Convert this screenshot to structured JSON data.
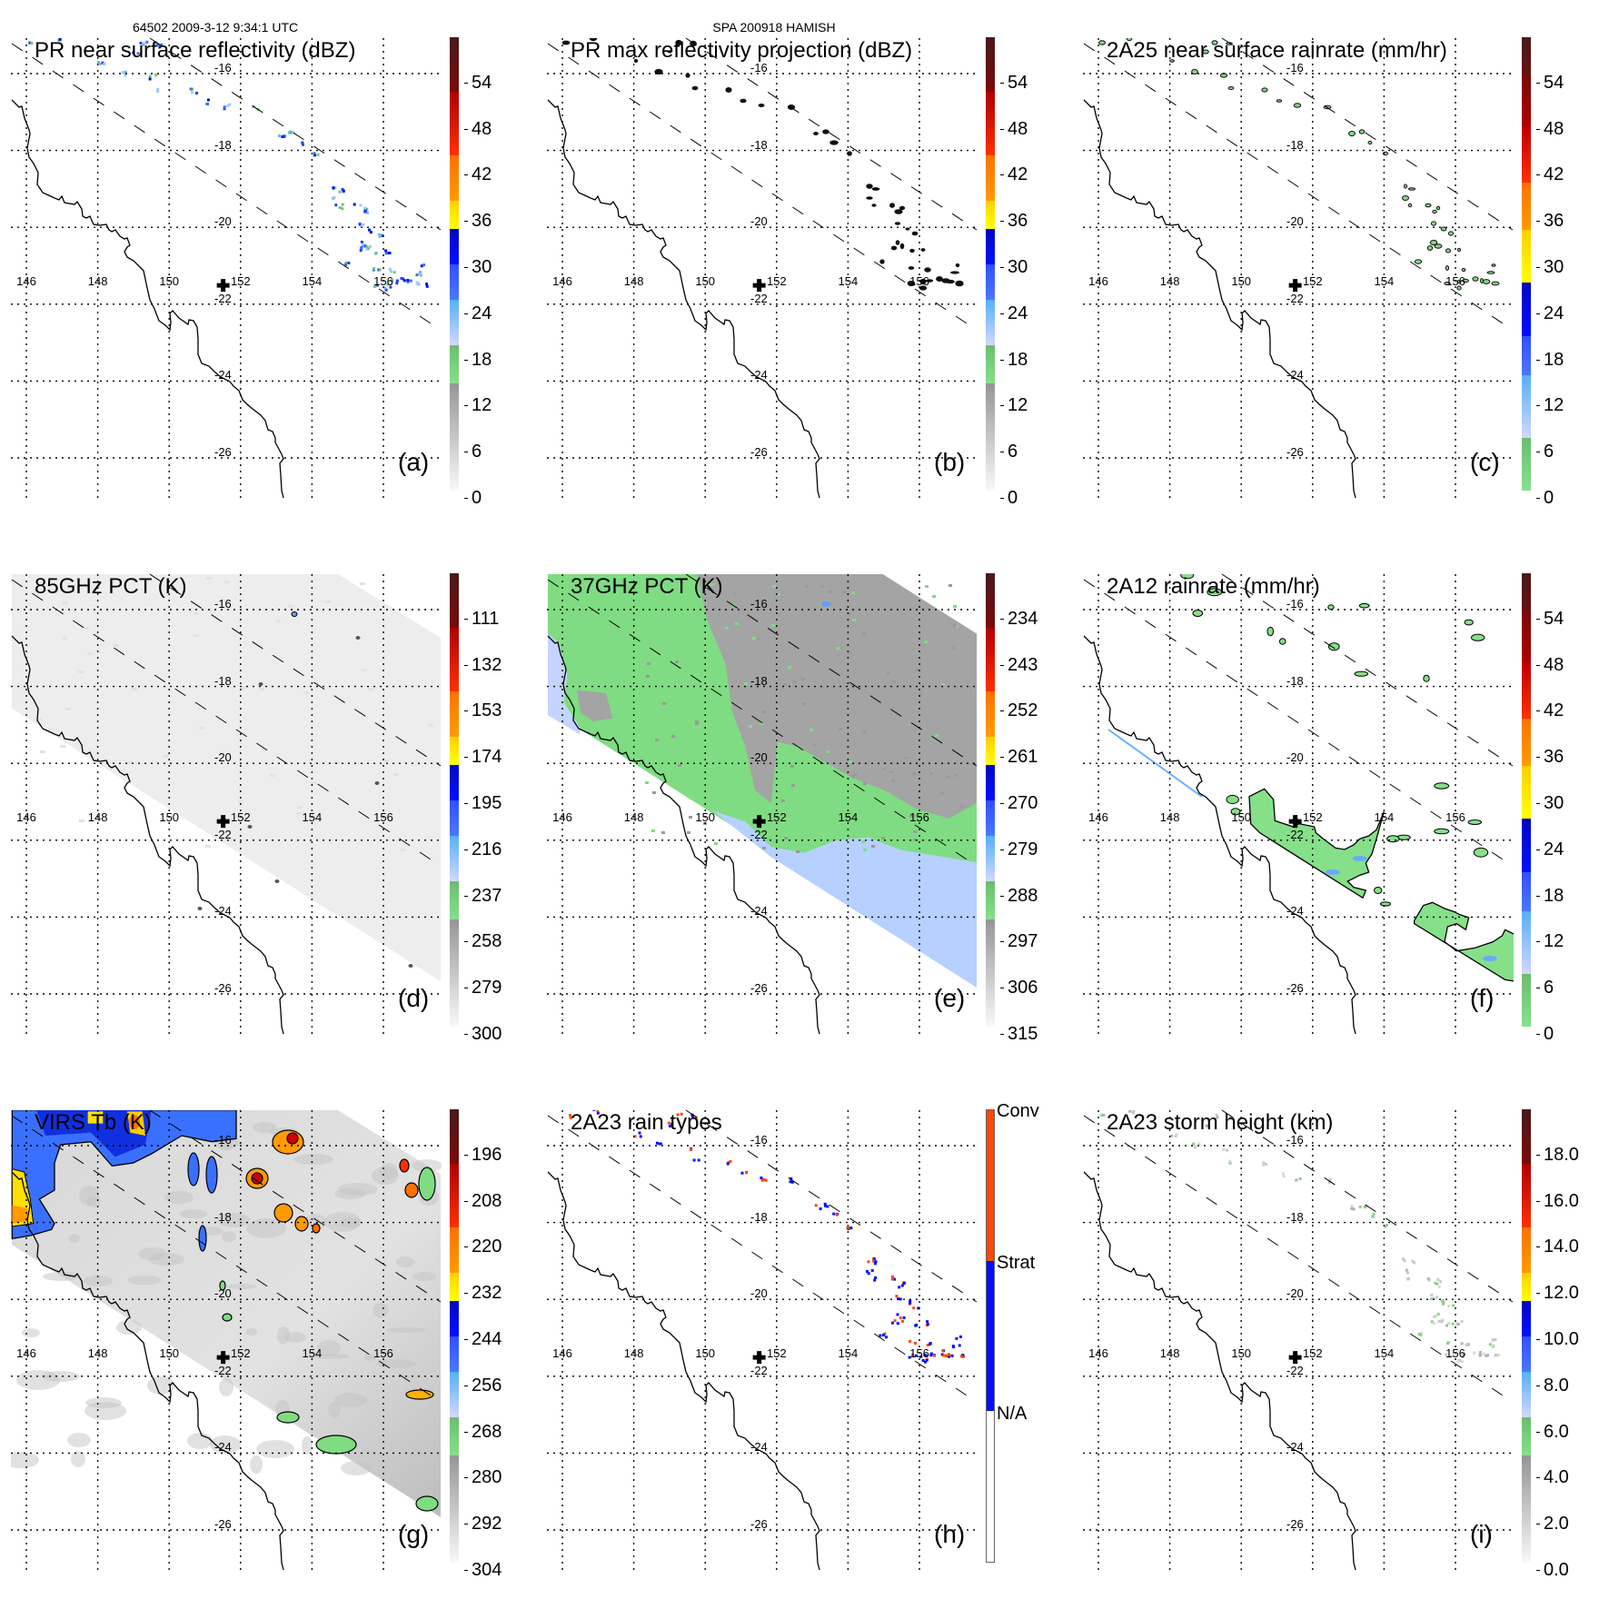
{
  "header": {
    "orbit_time": "64502 2009-3-12 9:34:1 UTC",
    "storm": "SPA 200918 HAMISH"
  },
  "axes": {
    "lon_labels": [
      "146",
      "148",
      "150",
      "152",
      "154",
      "156"
    ],
    "lon_values": [
      146,
      148,
      150,
      152,
      154,
      156
    ],
    "lat_labels": [
      "-16",
      "-18",
      "-20",
      "-22",
      "-24",
      "-26"
    ],
    "lat_values": [
      -16,
      -18,
      -20,
      -22,
      -24,
      -26
    ]
  },
  "storm_center_marker": {
    "icon": "cross-icon",
    "lon": 151.5,
    "lat": -21.5
  },
  "colormaps": {
    "standard": [
      {
        "from": 0.0,
        "to": 0.236,
        "c1": "#f8f8f8",
        "c2": "#959595"
      },
      {
        "from": 0.236,
        "to": 0.32,
        "c1": "#86e08a",
        "c2": "#6bbd6e"
      },
      {
        "from": 0.32,
        "to": 0.42,
        "c1": "#d2d8ff",
        "c2": "#55b0f5"
      },
      {
        "from": 0.42,
        "to": 0.5,
        "c1": "#4a78ff",
        "c2": "#3050ff"
      },
      {
        "from": 0.5,
        "to": 0.577,
        "c1": "#0010ff",
        "c2": "#0008c0"
      },
      {
        "from": 0.577,
        "to": 0.64,
        "c1": "#ffff00",
        "c2": "#ffd000"
      },
      {
        "from": 0.64,
        "to": 0.74,
        "c1": "#ff9c00",
        "c2": "#ff7000"
      },
      {
        "from": 0.74,
        "to": 0.88,
        "c1": "#ff3000",
        "c2": "#b00000"
      },
      {
        "from": 0.88,
        "to": 1.0,
        "c1": "#7a0a0a",
        "c2": "#4a1a1a"
      }
    ],
    "rain": [
      {
        "from": 0.0,
        "to": 0.117,
        "c1": "#88e08c",
        "c2": "#6bbd6e"
      },
      {
        "from": 0.117,
        "to": 0.254,
        "c1": "#d2d8ff",
        "c2": "#55b0f5"
      },
      {
        "from": 0.254,
        "to": 0.34,
        "c1": "#4a78ff",
        "c2": "#3050ff"
      },
      {
        "from": 0.34,
        "to": 0.458,
        "c1": "#0010ff",
        "c2": "#0008c0"
      },
      {
        "from": 0.458,
        "to": 0.575,
        "c1": "#ffff00",
        "c2": "#ffd000"
      },
      {
        "from": 0.575,
        "to": 0.679,
        "c1": "#ff9c00",
        "c2": "#ff7000"
      },
      {
        "from": 0.679,
        "to": 0.803,
        "c1": "#ff3000",
        "c2": "#c00000"
      },
      {
        "from": 0.803,
        "to": 0.916,
        "c1": "#b00000",
        "c2": "#7a0a0a"
      },
      {
        "from": 0.916,
        "to": 1.0,
        "c1": "#6a1010",
        "c2": "#4a1a1a"
      }
    ],
    "raintype": [
      {
        "from": 0.0,
        "to": 0.334,
        "c1": "#ffffff",
        "c2": "#ffffff"
      },
      {
        "from": 0.334,
        "to": 0.667,
        "c1": "#0010ff",
        "c2": "#0010ff"
      },
      {
        "from": 0.667,
        "to": 1.0,
        "c1": "#ff4800",
        "c2": "#ff4800"
      }
    ]
  },
  "panels": [
    {
      "id": "a",
      "title": "PR near surface reflectivity (dBZ)",
      "letter": "(a)",
      "colormap": "standard",
      "colorbar_labels": [
        "0",
        "6",
        "12",
        "18",
        "24",
        "30",
        "36",
        "42",
        "48",
        "54"
      ]
    },
    {
      "id": "b",
      "title": "PR max reflectivity projection (dBZ)",
      "letter": "(b)",
      "colormap": "standard",
      "colorbar_labels": [
        "0",
        "6",
        "12",
        "18",
        "24",
        "30",
        "36",
        "42",
        "48",
        "54"
      ]
    },
    {
      "id": "c",
      "title": "2A25 near surface rainrate (mm/hr)",
      "letter": "(c)",
      "colormap": "rain",
      "colorbar_labels": [
        "0",
        "6",
        "12",
        "18",
        "24",
        "30",
        "36",
        "42",
        "48",
        "54"
      ]
    },
    {
      "id": "d",
      "title": "85GHz PCT (K)",
      "letter": "(d)",
      "colormap": "standard",
      "colorbar_labels": [
        "300",
        "279",
        "258",
        "237",
        "216",
        "195",
        "174",
        "153",
        "132",
        "111"
      ]
    },
    {
      "id": "e",
      "title": "37GHz PCT (K)",
      "letter": "(e)",
      "colormap": "standard",
      "colorbar_labels": [
        "315",
        "306",
        "297",
        "288",
        "279",
        "270",
        "261",
        "252",
        "243",
        "234"
      ]
    },
    {
      "id": "f",
      "title": "2A12 rainrate (mm/hr)",
      "letter": "(f)",
      "colormap": "rain",
      "colorbar_labels": [
        "0",
        "6",
        "12",
        "18",
        "24",
        "30",
        "36",
        "42",
        "48",
        "54"
      ]
    },
    {
      "id": "g",
      "title": "VIRS Tb (K)",
      "letter": "(g)",
      "colormap": "standard",
      "colorbar_labels": [
        "304",
        "292",
        "280",
        "268",
        "256",
        "244",
        "232",
        "220",
        "208",
        "196"
      ]
    },
    {
      "id": "h",
      "title": "2A23 rain types",
      "letter": "(h)",
      "colormap": "raintype",
      "colorbar_categories": [
        "N/A",
        "Strat",
        "Conv"
      ]
    },
    {
      "id": "i",
      "title": "2A23 storm height (km)",
      "letter": "(i)",
      "colormap": "standard",
      "colorbar_labels": [
        "0.0",
        "2.0",
        "4.0",
        "6.0",
        "8.0",
        "10.0",
        "12.0",
        "14.0",
        "16.0",
        "18.0"
      ]
    }
  ]
}
